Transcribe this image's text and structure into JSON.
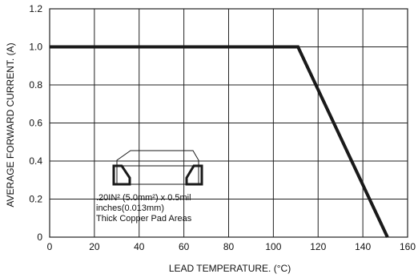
{
  "chart_data": {
    "type": "line",
    "xlabel": "LEAD TEMPERATURE. (°C)",
    "ylabel": "AVERAGE FORWARD CURRENT. (A)",
    "xlim": [
      0,
      160
    ],
    "ylim": [
      0,
      1.2
    ],
    "x_ticks": [
      0,
      20,
      40,
      60,
      80,
      100,
      120,
      140,
      160
    ],
    "y_ticks": [
      0,
      0.2,
      0.4,
      0.6,
      0.8,
      1.0,
      1.2
    ],
    "y_tick_labels": [
      "0",
      "0.2",
      "0.4",
      "0.6",
      "0.8",
      "1.0",
      "1.2"
    ],
    "grid": true,
    "series": [
      {
        "x": [
          0,
          111,
          151
        ],
        "y": [
          1.0,
          1.0,
          0
        ]
      }
    ],
    "annotation": {
      "lines": [
        ".20IN² (5.0mm²) x 0.5mil",
        "inches(0.013mm)",
        "Thick Copper Pad Areas"
      ]
    }
  },
  "colors": {
    "line": "#1a1a1a",
    "grid": "#222222",
    "text": "#111111"
  }
}
